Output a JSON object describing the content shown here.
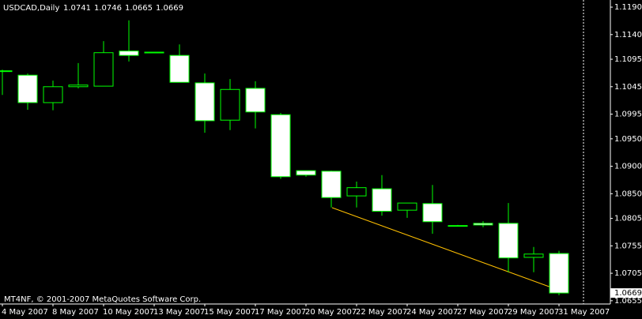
{
  "chart_data": {
    "type": "candlestick",
    "title": "USDCAD,Daily",
    "footer": "MT4NF, © 2001-2007 MetaQuotes Software Corp.",
    "categories": [
      "4 May 2007",
      null,
      "8 May 2007",
      null,
      "10 May 2007",
      null,
      "13 May 2007",
      null,
      "15 May 2007",
      null,
      "17 May 2007",
      null,
      "20 May 2007",
      null,
      "22 May 2007",
      null,
      "24 May 2007",
      null,
      "27 May 2007",
      null,
      "29 May 2007",
      null,
      "31 May 2007"
    ],
    "open": [
      1.1074,
      1.1066,
      1.1016,
      1.1045,
      1.1046,
      1.111,
      1.1108,
      1.1102,
      1.1052,
      1.0984,
      1.1042,
      1.0994,
      1.0892,
      1.0891,
      1.0846,
      1.0859,
      1.082,
      1.0832,
      1.0792,
      1.0796,
      1.0796,
      1.0734,
      1.0741
    ],
    "high": [
      1.1076,
      1.1069,
      1.1056,
      1.1088,
      1.1128,
      1.1166,
      1.1108,
      1.1122,
      1.1069,
      1.1059,
      1.1055,
      1.0997,
      1.0892,
      1.0892,
      1.0872,
      1.0884,
      1.0833,
      1.0866,
      1.0793,
      1.08,
      1.0833,
      1.0753,
      1.0746
    ],
    "low": [
      1.103,
      1.1003,
      1.1002,
      1.1042,
      1.1046,
      1.1091,
      1.1107,
      1.1053,
      1.0961,
      1.0966,
      1.0969,
      1.0877,
      1.0881,
      1.0825,
      1.0825,
      1.081,
      1.0806,
      1.0777,
      1.079,
      1.0789,
      1.0707,
      1.0707,
      1.0665
    ],
    "close": [
      1.1074,
      1.1016,
      1.1045,
      1.1048,
      1.1107,
      1.1102,
      1.1108,
      1.1053,
      1.0983,
      1.104,
      1.0999,
      1.0881,
      1.0884,
      1.0843,
      1.0861,
      1.0818,
      1.0833,
      1.0799,
      1.0792,
      1.0793,
      1.0733,
      1.074,
      1.0669
    ],
    "ylim": [
      1.0649,
      1.1203
    ],
    "yticks": [
      {
        "value": 1.119,
        "label": "1.1190"
      },
      {
        "value": 1.114,
        "label": "1.1140"
      },
      1.1095,
      1.1045,
      1.0995,
      {
        "value": 1.095,
        "label": "1.0950"
      },
      {
        "value": 1.09,
        "label": "1.0900"
      },
      {
        "value": 1.085,
        "label": "1.0850"
      },
      1.0805,
      1.0755,
      1.0705,
      1.0655
    ],
    "outline_color": "#00ff00",
    "bull_color": "#000000",
    "bear_color": "#ffffff"
  }
}
